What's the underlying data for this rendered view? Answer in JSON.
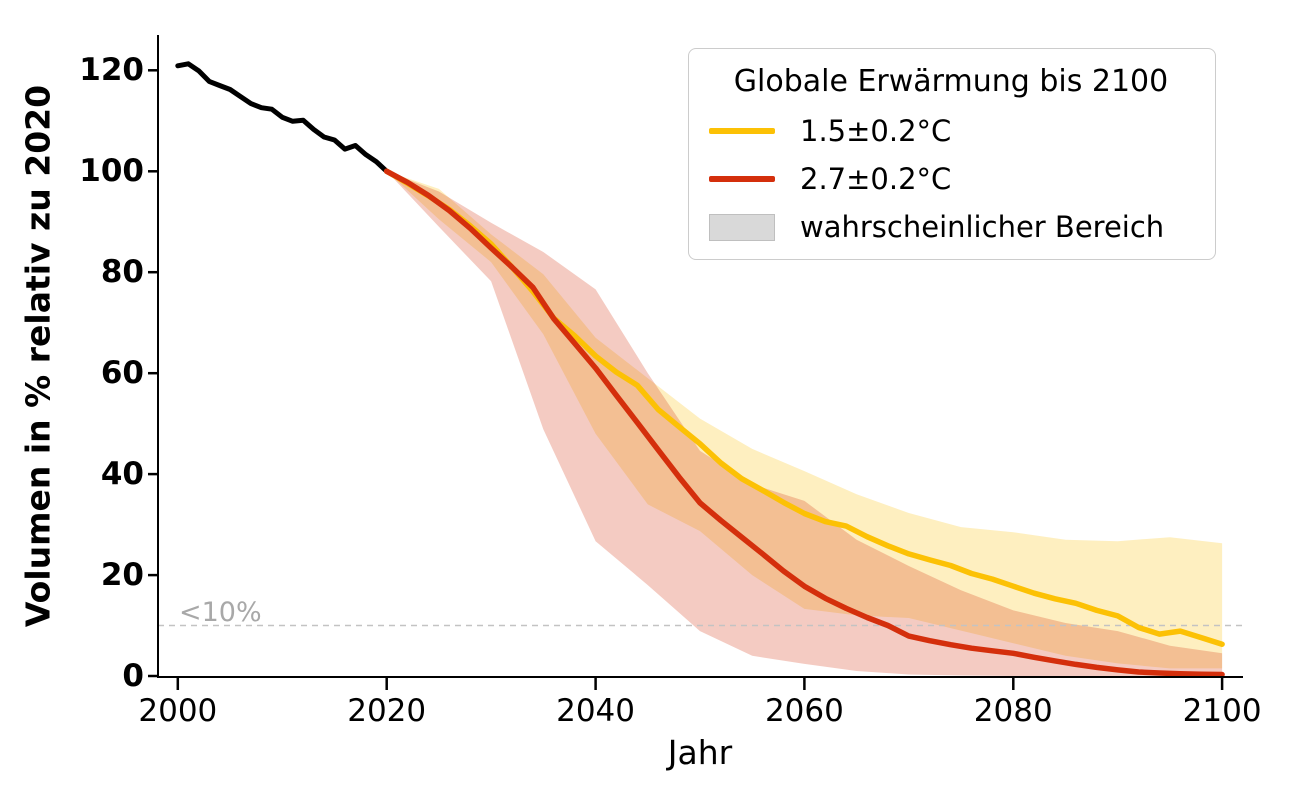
{
  "chart_data": {
    "type": "line",
    "title": "",
    "xlabel": "Jahr",
    "ylabel": "Volumen in % relativ zu 2020",
    "xlim": [
      1998.1,
      2102
    ],
    "ylim": [
      0,
      127
    ],
    "x_ticks": [
      2000,
      2020,
      2040,
      2060,
      2080,
      2100
    ],
    "y_ticks": [
      0,
      20,
      40,
      60,
      80,
      100,
      120
    ],
    "grid": false,
    "legend_position": "top-right",
    "axis_color": "#000000",
    "threshold": {
      "value": 10,
      "label": "<10%",
      "line_color": "#c3c3c3",
      "label_color": "#a8a8a8"
    },
    "series": [
      {
        "id": "historical",
        "name": "",
        "color": "#000000",
        "linewidth": 5,
        "x": [
          2000,
          2001,
          2002,
          2003,
          2004,
          2005,
          2006,
          2007,
          2008,
          2009,
          2010,
          2011,
          2012,
          2013,
          2014,
          2015,
          2016,
          2017,
          2018,
          2019,
          2020
        ],
        "values": [
          120.9,
          121.3,
          119.9,
          117.8,
          117.0,
          116.2,
          114.8,
          113.4,
          112.6,
          112.3,
          110.7,
          109.9,
          110.1,
          108.3,
          106.8,
          106.2,
          104.4,
          105.1,
          103.3,
          101.9,
          100.0
        ]
      },
      {
        "id": "warming-1p5",
        "name": "1.5±0.2°C",
        "color": "#FCC105",
        "linewidth": 5.5,
        "x": [
          2020,
          2022,
          2024,
          2026,
          2028,
          2030,
          2032,
          2034,
          2036,
          2038,
          2040,
          2042,
          2044,
          2046,
          2048,
          2050,
          2052,
          2054,
          2056,
          2058,
          2060,
          2062,
          2064,
          2066,
          2068,
          2070,
          2072,
          2074,
          2076,
          2078,
          2080,
          2082,
          2084,
          2086,
          2088,
          2090,
          2092,
          2094,
          2096,
          2098,
          2100
        ],
        "values": [
          100,
          97.6,
          95.1,
          92.4,
          89.2,
          85.6,
          81.0,
          76.2,
          70.9,
          67.4,
          63.4,
          60.2,
          57.6,
          52.8,
          49.4,
          46.0,
          42.2,
          39.1,
          36.8,
          34.4,
          32.2,
          30.6,
          29.7,
          27.6,
          25.8,
          24.2,
          23.0,
          21.9,
          20.3,
          19.2,
          17.8,
          16.4,
          15.3,
          14.4,
          13.0,
          11.9,
          9.6,
          8.3,
          8.9,
          7.6,
          6.3
        ],
        "band": {
          "alpha": 0.25,
          "x": [
            2020,
            2025,
            2030,
            2035,
            2040,
            2045,
            2050,
            2055,
            2060,
            2065,
            2070,
            2075,
            2080,
            2085,
            2090,
            2095,
            2100
          ],
          "lower": [
            100,
            90.5,
            82,
            67.7,
            48,
            34,
            28.7,
            20,
            13.3,
            12,
            11.5,
            9,
            6.5,
            4,
            2.5,
            1.5,
            1.5
          ],
          "upper": [
            100,
            96.5,
            87.5,
            79.6,
            67,
            59,
            51,
            45,
            40.6,
            36,
            32.3,
            29.5,
            28.5,
            27,
            26.7,
            27.5,
            26.3
          ]
        }
      },
      {
        "id": "warming-2p7",
        "name": "2.7±0.2°C",
        "color": "#D42F0C",
        "linewidth": 5.5,
        "x": [
          2020,
          2022,
          2024,
          2026,
          2028,
          2030,
          2032,
          2034,
          2036,
          2038,
          2040,
          2042,
          2044,
          2046,
          2048,
          2050,
          2052,
          2054,
          2056,
          2058,
          2060,
          2062,
          2064,
          2066,
          2068,
          2070,
          2072,
          2074,
          2076,
          2078,
          2080,
          2082,
          2084,
          2086,
          2088,
          2090,
          2092,
          2094,
          2096,
          2098,
          2100
        ],
        "values": [
          100,
          97.8,
          95.2,
          92.2,
          88.7,
          84.8,
          81.0,
          77.0,
          70.8,
          65.9,
          61.0,
          55.6,
          50.2,
          44.8,
          39.4,
          34.3,
          30.8,
          27.5,
          24.2,
          20.8,
          17.8,
          15.4,
          13.4,
          11.6,
          10.0,
          7.9,
          7.0,
          6.2,
          5.5,
          5.0,
          4.5,
          3.7,
          3.0,
          2.3,
          1.7,
          1.2,
          0.8,
          0.6,
          0.45,
          0.35,
          0.3
        ],
        "band": {
          "alpha": 0.25,
          "x": [
            2020,
            2025,
            2030,
            2035,
            2040,
            2045,
            2050,
            2055,
            2060,
            2065,
            2070,
            2075,
            2080,
            2085,
            2090,
            2095,
            2100
          ],
          "lower": [
            100,
            89,
            78.2,
            48.9,
            26.7,
            18,
            8.9,
            4,
            2.4,
            1,
            0.3,
            0.1,
            0,
            0,
            0,
            0,
            0
          ],
          "upper": [
            100,
            96,
            89.8,
            84,
            76.6,
            60,
            44.6,
            38,
            34.7,
            27,
            21.8,
            17,
            13,
            10.5,
            8.9,
            6,
            4.5
          ]
        }
      }
    ],
    "legend": {
      "title": "Globale Erwärmung bis 2100",
      "entries": [
        {
          "label": "1.5±0.2°C",
          "type": "line",
          "color": "#FCC105"
        },
        {
          "label": "2.7±0.2°C",
          "type": "line",
          "color": "#D42F0C"
        },
        {
          "label": "wahrscheinlicher Bereich",
          "type": "patch",
          "color": "#D9D9D9",
          "border_color": "#bfbfbf"
        }
      ]
    }
  }
}
